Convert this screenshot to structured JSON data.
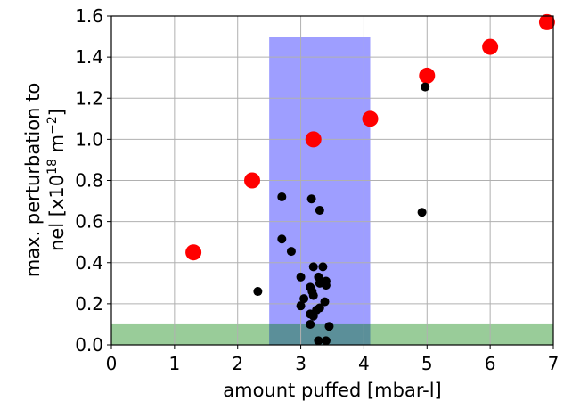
{
  "chart_data": {
    "type": "scatter",
    "xlabel": "amount puffed [mbar-l]",
    "ylabel_line1": "max. perturbation to",
    "ylabel_line2_prefix": "nel [x10",
    "ylabel_line2_sup": "18",
    "ylabel_line2_mid": " m",
    "ylabel_line2_sup2": "−2",
    "ylabel_line2_suffix": "]",
    "xlim": [
      0,
      7
    ],
    "ylim": [
      0,
      1.6
    ],
    "xticks": [
      "0",
      "1",
      "2",
      "3",
      "4",
      "5",
      "6",
      "7"
    ],
    "yticks": [
      "0.0",
      "0.2",
      "0.4",
      "0.6",
      "0.8",
      "1.0",
      "1.2",
      "1.4",
      "1.6"
    ],
    "grid": true,
    "shaded_regions": [
      {
        "x": [
          0,
          7
        ],
        "y": [
          0,
          0.1
        ],
        "color": "#99cc99"
      },
      {
        "x": [
          2.5,
          4.1
        ],
        "y": [
          0,
          1.5
        ],
        "color": "#9999ff"
      }
    ],
    "series": [
      {
        "color": "#ff0000",
        "marker": "large-circle",
        "points": [
          [
            1.3,
            0.45
          ],
          [
            2.23,
            0.8
          ],
          [
            3.2,
            1.0
          ],
          [
            4.1,
            1.1
          ],
          [
            5.0,
            1.31
          ],
          [
            6.0,
            1.45
          ],
          [
            6.9,
            1.57
          ]
        ]
      },
      {
        "color": "#000000",
        "marker": "small-circle",
        "points": [
          [
            2.32,
            0.26
          ],
          [
            2.7,
            0.72
          ],
          [
            2.7,
            0.515
          ],
          [
            2.85,
            0.455
          ],
          [
            3.17,
            0.71
          ],
          [
            3.3,
            0.655
          ],
          [
            3.0,
            0.33
          ],
          [
            3.05,
            0.225
          ],
          [
            3.0,
            0.19
          ],
          [
            3.15,
            0.28
          ],
          [
            3.18,
            0.26
          ],
          [
            3.2,
            0.38
          ],
          [
            3.28,
            0.33
          ],
          [
            3.35,
            0.38
          ],
          [
            3.3,
            0.3
          ],
          [
            3.4,
            0.31
          ],
          [
            3.4,
            0.29
          ],
          [
            3.2,
            0.24
          ],
          [
            3.15,
            0.15
          ],
          [
            3.2,
            0.14
          ],
          [
            3.15,
            0.1
          ],
          [
            3.25,
            0.17
          ],
          [
            3.3,
            0.18
          ],
          [
            3.38,
            0.21
          ],
          [
            3.45,
            0.09
          ],
          [
            3.28,
            0.02
          ],
          [
            3.4,
            0.02
          ],
          [
            4.92,
            0.645
          ],
          [
            4.97,
            1.255
          ]
        ]
      }
    ]
  }
}
